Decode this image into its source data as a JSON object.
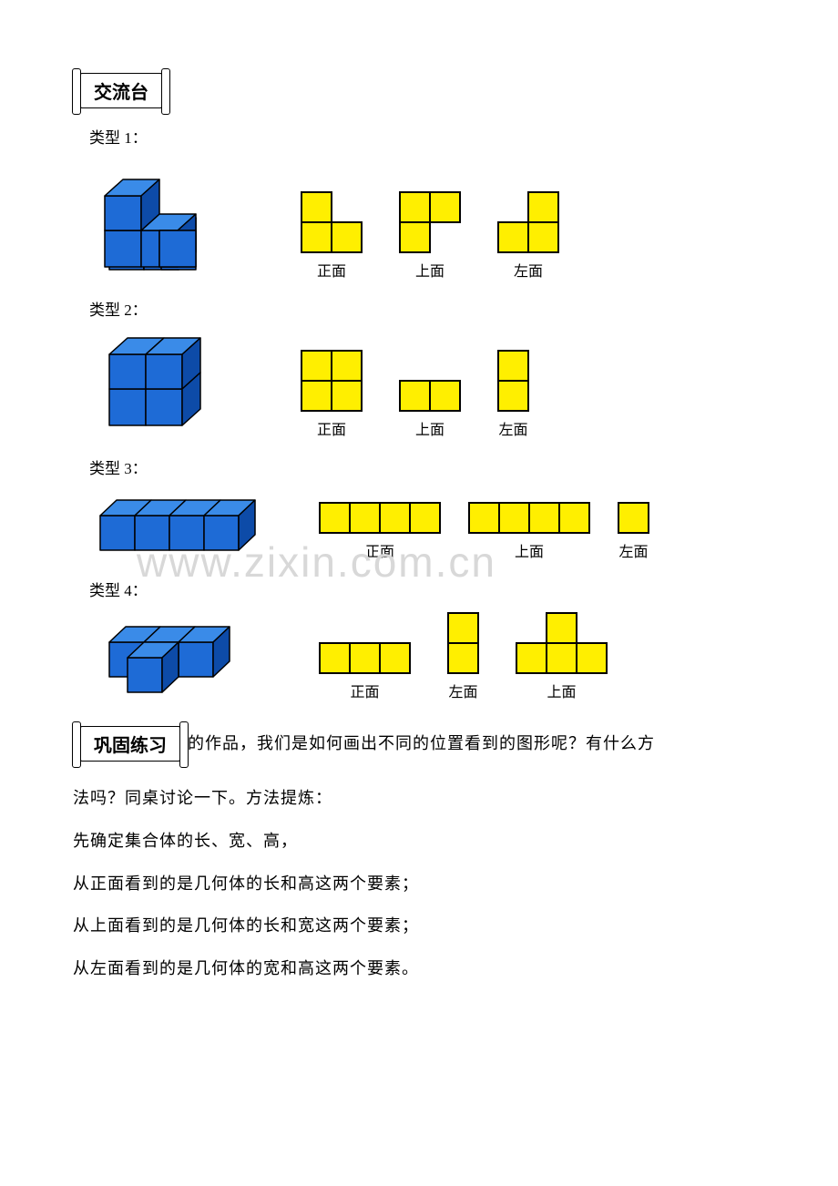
{
  "colors": {
    "cube_yellow_fill": "#ffef00",
    "cube_yellow_stroke": "#000000",
    "cube_yellow_stroke_width": 2,
    "cube_blue_front": "#1e6bd6",
    "cube_blue_top": "#3a8be8",
    "cube_blue_side": "#0d4ba8",
    "cube_blue_stroke": "#000000",
    "cube_blue_stroke_width": 1.5,
    "text": "#000000",
    "watermark": "#d8d8d8",
    "background": "#ffffff"
  },
  "header": {
    "title": "交流台"
  },
  "types": [
    {
      "label": "类型 1：",
      "views": [
        {
          "label": "正面",
          "cells": [
            [
              0,
              0
            ],
            [
              0,
              1
            ],
            [
              1,
              1
            ]
          ]
        },
        {
          "label": "上面",
          "cells": [
            [
              0,
              0
            ],
            [
              1,
              0
            ],
            [
              0,
              1
            ]
          ]
        },
        {
          "label": "左面",
          "cells": [
            [
              1,
              0
            ],
            [
              0,
              1
            ],
            [
              1,
              1
            ]
          ]
        }
      ]
    },
    {
      "label": "类型 2：",
      "views": [
        {
          "label": "正面",
          "cells": [
            [
              0,
              0
            ],
            [
              1,
              0
            ],
            [
              0,
              1
            ],
            [
              1,
              1
            ]
          ]
        },
        {
          "label": "上面",
          "cells": [
            [
              0,
              0
            ],
            [
              1,
              0
            ]
          ]
        },
        {
          "label": "左面",
          "cells": [
            [
              0,
              0
            ],
            [
              0,
              1
            ]
          ]
        }
      ]
    },
    {
      "label": "类型 3：",
      "views": [
        {
          "label": "正面",
          "cells": [
            [
              0,
              0
            ],
            [
              1,
              0
            ],
            [
              2,
              0
            ],
            [
              3,
              0
            ]
          ]
        },
        {
          "label": "上面",
          "cells": [
            [
              0,
              0
            ],
            [
              1,
              0
            ],
            [
              2,
              0
            ],
            [
              3,
              0
            ]
          ]
        },
        {
          "label": "左面",
          "cells": [
            [
              0,
              0
            ]
          ]
        }
      ]
    },
    {
      "label": "类型 4：",
      "views": [
        {
          "label": "正面",
          "cells": [
            [
              0,
              0
            ],
            [
              1,
              0
            ],
            [
              2,
              0
            ]
          ]
        },
        {
          "label": "左面",
          "cells": [
            [
              0,
              0
            ],
            [
              0,
              1
            ]
          ]
        },
        {
          "label": "上面",
          "cells": [
            [
              1,
              0
            ],
            [
              0,
              1
            ],
            [
              1,
              1
            ],
            [
              2,
              1
            ]
          ]
        }
      ]
    }
  ],
  "practice": {
    "title": "巩固练习",
    "line1_tail": "的作品，我们是如何画出不同的位置看到的图形呢？有什么方",
    "line2": "法吗？同桌讨论一下。方法提炼：",
    "line3": "先确定集合体的长、宽、高，",
    "line4": "从正面看到的是几何体的长和高这两个要素；",
    "line5": "从上面看到的是几何体的长和宽这两个要素；",
    "line6": "从左面看到的是几何体的宽和高这两个要素。"
  },
  "watermark": "www.zixin.com.cn",
  "cell_size": 33,
  "iso_unit": 38
}
